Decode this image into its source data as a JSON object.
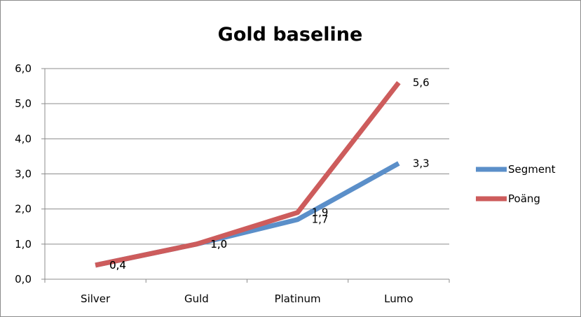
{
  "chart_data": {
    "type": "line",
    "title": "Gold baseline",
    "categories": [
      "Silver",
      "Guld",
      "Platinum",
      "Lumo"
    ],
    "series": [
      {
        "name": "Segment",
        "values": [
          0.4,
          1.0,
          1.7,
          3.3
        ],
        "labels": [
          "0,4",
          "1,0",
          "1,7",
          "3,3"
        ],
        "color": "#5b8fc9"
      },
      {
        "name": "Poäng",
        "values": [
          0.4,
          1.0,
          1.9,
          5.6
        ],
        "labels": [
          "0,4",
          "1,0",
          "1,9",
          "5,6"
        ],
        "color": "#cd5c5c"
      }
    ],
    "ylim": [
      0,
      6
    ],
    "yticks": [
      "0,0",
      "1,0",
      "2,0",
      "3,0",
      "4,0",
      "5,0",
      "6,0"
    ],
    "grid": true,
    "legend": "right"
  }
}
